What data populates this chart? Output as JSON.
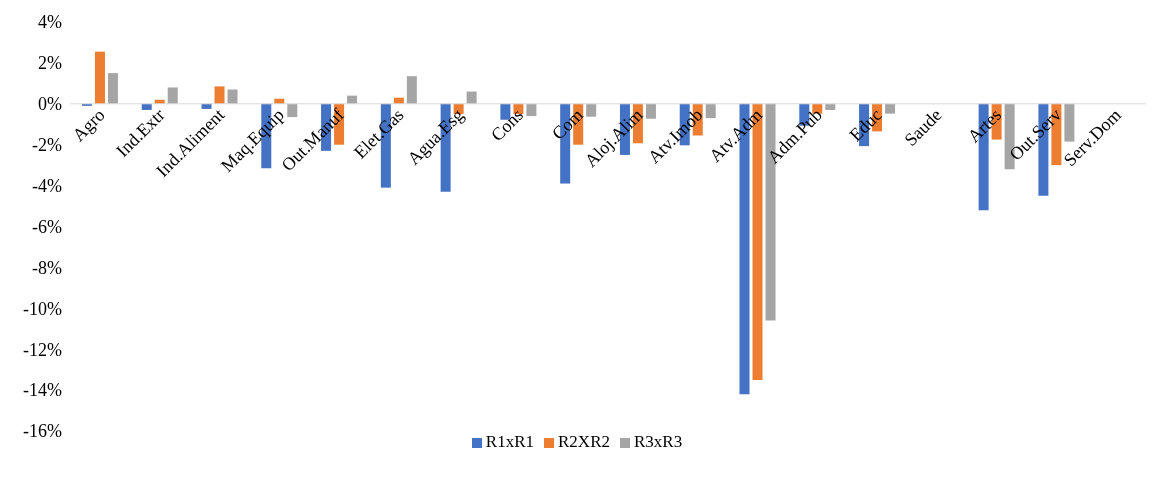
{
  "chart_data": {
    "type": "bar",
    "categories": [
      "Agro",
      "Ind.Extr",
      "Ind.Aliment",
      "Maq.Equip",
      "Out.Manuf",
      "Elet.Gas",
      "Agua.Esg",
      "Cons",
      "Com",
      "Aloj.Alim",
      "Atv.Imob",
      "Atv.Adm",
      "Adm.Pub",
      "Educ",
      "Saude",
      "Artes",
      "Out.Serv",
      "Serv.Dom"
    ],
    "series": [
      {
        "name": "R1xR1",
        "color": "#4472c4",
        "values": [
          -0.1,
          -0.3,
          -0.25,
          -3.15,
          -2.3,
          -4.1,
          -4.3,
          -0.78,
          -3.9,
          -2.5,
          -2.03,
          -14.2,
          -1.07,
          -2.07,
          null,
          -5.2,
          -4.5,
          0
        ]
      },
      {
        "name": "R2XR2",
        "color": "#ed7d31",
        "values": [
          2.55,
          0.2,
          0.85,
          0.25,
          -2.0,
          0.3,
          -0.5,
          -0.5,
          -2.0,
          -1.93,
          -1.55,
          -13.5,
          -0.48,
          -1.35,
          null,
          -1.75,
          -3.0,
          0
        ]
      },
      {
        "name": "R3xR3",
        "color": "#a5a5a5",
        "values": [
          1.5,
          0.8,
          0.7,
          -0.65,
          0.4,
          1.35,
          0.6,
          -0.6,
          -0.63,
          -0.73,
          -0.7,
          -10.6,
          -0.3,
          -0.48,
          null,
          -3.2,
          -1.85,
          0
        ]
      }
    ],
    "ylim": [
      -16,
      4
    ],
    "yticks": [
      {
        "value": 4,
        "label": "4%"
      },
      {
        "value": 2,
        "label": "2%"
      },
      {
        "value": 0,
        "label": "0%"
      },
      {
        "value": -2,
        "label": "-2%"
      },
      {
        "value": -4,
        "label": "-4%"
      },
      {
        "value": -6,
        "label": "-6%"
      },
      {
        "value": -8,
        "label": "-8%"
      },
      {
        "value": -10,
        "label": "-10%"
      },
      {
        "value": -12,
        "label": "-12%"
      },
      {
        "value": -14,
        "label": "-14%"
      },
      {
        "value": -16,
        "label": "-16%"
      }
    ],
    "grid": false,
    "legend": "bottom"
  }
}
